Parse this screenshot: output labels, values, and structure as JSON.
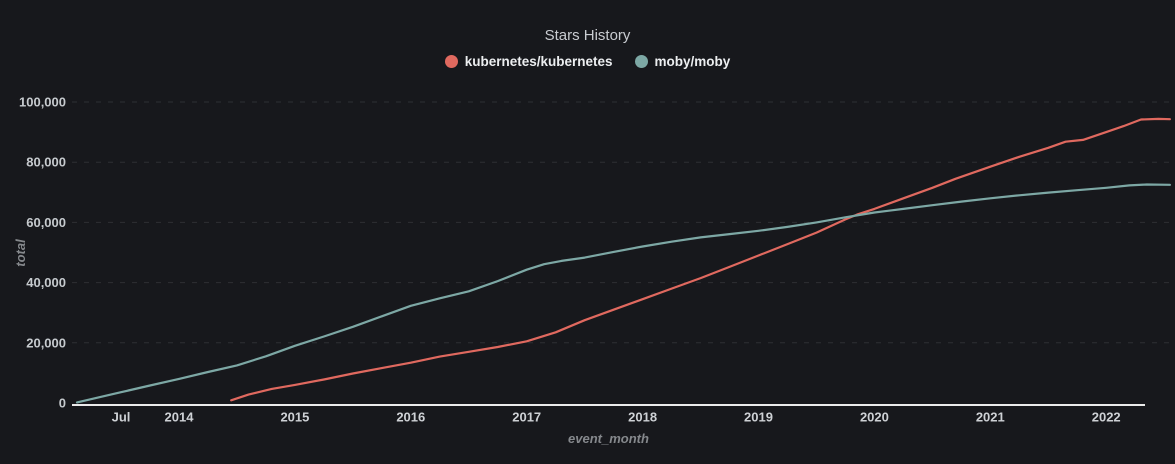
{
  "chart": {
    "background": "#17181c",
    "title_color": "#c9ccd1",
    "axis_line_color": "#ebebeb",
    "grid_color": "rgba(255,255,255,0.10)",
    "tick_label_color": "#c6cace",
    "axis_name_color": "#85888c"
  },
  "chart_data": {
    "type": "line",
    "title": "Stars History",
    "xlabel": "event_month",
    "ylabel": "total",
    "legend_position": "top",
    "grid": "horizontal-dashed",
    "x_axis": {
      "unit": "decimal_year",
      "range": [
        2013.05,
        2022.6
      ],
      "ticks": [
        {
          "label": "Jul",
          "year": 2013.5
        },
        {
          "label": "2014",
          "year": 2014.0
        },
        {
          "label": "2015",
          "year": 2015.0
        },
        {
          "label": "2016",
          "year": 2016.0
        },
        {
          "label": "2017",
          "year": 2017.0
        },
        {
          "label": "2018",
          "year": 2018.0
        },
        {
          "label": "2019",
          "year": 2019.0
        },
        {
          "label": "2020",
          "year": 2020.0
        },
        {
          "label": "2021",
          "year": 2021.0
        },
        {
          "label": "2022",
          "year": 2022.0
        }
      ]
    },
    "y_axis": {
      "min": 0,
      "max": 100000,
      "ticks": [
        {
          "value": 0,
          "label": "0"
        },
        {
          "value": 20000,
          "label": "20,000"
        },
        {
          "value": 40000,
          "label": "40,000"
        },
        {
          "value": 60000,
          "label": "60,000"
        },
        {
          "value": 80000,
          "label": "80,000"
        },
        {
          "value": 100000,
          "label": "100,000"
        }
      ]
    },
    "series": [
      {
        "name": "kubernetes/kubernetes",
        "color": "#e0695f",
        "points": [
          [
            2014.45,
            900
          ],
          [
            2014.6,
            2800
          ],
          [
            2014.8,
            4700
          ],
          [
            2015.0,
            6000
          ],
          [
            2015.25,
            7800
          ],
          [
            2015.5,
            9800
          ],
          [
            2015.75,
            11600
          ],
          [
            2016.0,
            13400
          ],
          [
            2016.25,
            15400
          ],
          [
            2016.5,
            17000
          ],
          [
            2016.75,
            18600
          ],
          [
            2017.0,
            20500
          ],
          [
            2017.25,
            23500
          ],
          [
            2017.5,
            27500
          ],
          [
            2017.75,
            31000
          ],
          [
            2018.0,
            34500
          ],
          [
            2018.25,
            38000
          ],
          [
            2018.5,
            41500
          ],
          [
            2018.75,
            45200
          ],
          [
            2019.0,
            49000
          ],
          [
            2019.25,
            52800
          ],
          [
            2019.5,
            56600
          ],
          [
            2019.75,
            61000
          ],
          [
            2019.85,
            62600
          ],
          [
            2020.0,
            64500
          ],
          [
            2020.25,
            68000
          ],
          [
            2020.5,
            71500
          ],
          [
            2020.7,
            74500
          ],
          [
            2021.0,
            78500
          ],
          [
            2021.25,
            81800
          ],
          [
            2021.5,
            84800
          ],
          [
            2021.65,
            86800
          ],
          [
            2021.8,
            87400
          ],
          [
            2022.0,
            90000
          ],
          [
            2022.15,
            92000
          ],
          [
            2022.3,
            94200
          ],
          [
            2022.45,
            94400
          ],
          [
            2022.55,
            94300
          ]
        ]
      },
      {
        "name": "moby/moby",
        "color": "#7da8a5",
        "points": [
          [
            2013.12,
            200
          ],
          [
            2013.3,
            1800
          ],
          [
            2013.5,
            3600
          ],
          [
            2013.75,
            5800
          ],
          [
            2014.0,
            8000
          ],
          [
            2014.25,
            10300
          ],
          [
            2014.5,
            12500
          ],
          [
            2014.75,
            15500
          ],
          [
            2015.0,
            19000
          ],
          [
            2015.25,
            22100
          ],
          [
            2015.5,
            25300
          ],
          [
            2015.75,
            28800
          ],
          [
            2016.0,
            32300
          ],
          [
            2016.25,
            34800
          ],
          [
            2016.5,
            37100
          ],
          [
            2016.75,
            40500
          ],
          [
            2017.0,
            44300
          ],
          [
            2017.15,
            46100
          ],
          [
            2017.3,
            47200
          ],
          [
            2017.5,
            48300
          ],
          [
            2017.75,
            50200
          ],
          [
            2018.0,
            52000
          ],
          [
            2018.25,
            53600
          ],
          [
            2018.5,
            55000
          ],
          [
            2018.75,
            56100
          ],
          [
            2019.0,
            57200
          ],
          [
            2019.25,
            58500
          ],
          [
            2019.5,
            60000
          ],
          [
            2019.75,
            61700
          ],
          [
            2020.0,
            63300
          ],
          [
            2020.25,
            64500
          ],
          [
            2020.5,
            65700
          ],
          [
            2020.75,
            66900
          ],
          [
            2021.0,
            68000
          ],
          [
            2021.25,
            69000
          ],
          [
            2021.5,
            69900
          ],
          [
            2021.75,
            70700
          ],
          [
            2022.0,
            71500
          ],
          [
            2022.2,
            72300
          ],
          [
            2022.35,
            72600
          ],
          [
            2022.55,
            72500
          ]
        ]
      }
    ]
  }
}
